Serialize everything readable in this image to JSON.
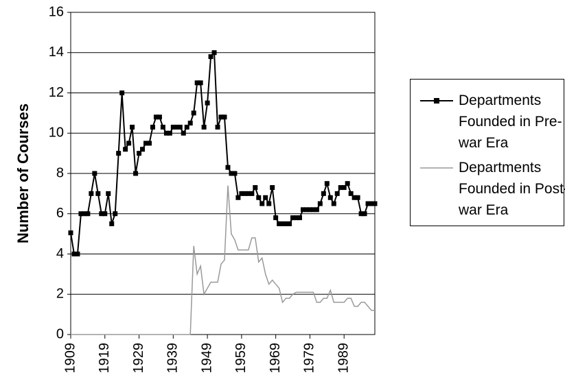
{
  "chart_data": {
    "type": "line",
    "y_label": "Number of Courses",
    "x": [
      1909,
      1910,
      1911,
      1912,
      1913,
      1914,
      1915,
      1916,
      1917,
      1918,
      1919,
      1920,
      1921,
      1922,
      1923,
      1924,
      1925,
      1926,
      1927,
      1928,
      1929,
      1930,
      1931,
      1932,
      1933,
      1934,
      1935,
      1936,
      1937,
      1938,
      1939,
      1940,
      1941,
      1942,
      1943,
      1944,
      1945,
      1946,
      1947,
      1948,
      1949,
      1950,
      1951,
      1952,
      1953,
      1954,
      1955,
      1956,
      1957,
      1958,
      1959,
      1960,
      1961,
      1962,
      1963,
      1964,
      1965,
      1966,
      1967,
      1968,
      1969,
      1970,
      1971,
      1972,
      1973,
      1974,
      1975,
      1976,
      1977,
      1978,
      1979,
      1980,
      1981,
      1982,
      1983,
      1984,
      1985,
      1986,
      1987,
      1988,
      1989,
      1990,
      1991,
      1992,
      1993,
      1994,
      1995,
      1996,
      1997,
      1998
    ],
    "xlim": [
      1909,
      1998
    ],
    "xticks": [
      1909,
      1919,
      1929,
      1939,
      1949,
      1959,
      1969,
      1979,
      1989
    ],
    "ylim": [
      0,
      16
    ],
    "yticks": [
      0,
      2,
      4,
      6,
      8,
      10,
      12,
      14,
      16
    ],
    "grid": true,
    "series": [
      {
        "name": "Departments Founded in Pre-war Era",
        "color": "#000000",
        "marker": "square",
        "values": [
          5.05,
          4,
          4,
          6,
          6,
          6,
          7,
          8,
          7,
          6,
          6,
          7,
          5.5,
          6,
          9,
          12,
          9.2,
          9.5,
          10.3,
          8,
          9,
          9.2,
          9.5,
          9.5,
          10.3,
          10.8,
          10.8,
          10.3,
          10,
          10,
          10.3,
          10.3,
          10.3,
          10,
          10.3,
          10.5,
          11,
          12.5,
          12.5,
          10.3,
          11.5,
          13.8,
          14,
          10.3,
          10.8,
          10.8,
          8.3,
          8,
          8,
          6.8,
          7,
          7,
          7,
          7,
          7.3,
          6.8,
          6.5,
          6.8,
          6.5,
          7.3,
          5.8,
          5.5,
          5.5,
          5.5,
          5.5,
          5.8,
          5.8,
          5.8,
          6.2,
          6.2,
          6.2,
          6.2,
          6.2,
          6.5,
          7,
          7.5,
          6.8,
          6.5,
          7,
          7.3,
          7.3,
          7.5,
          7,
          6.8,
          6.8,
          6,
          6,
          6.5,
          6.5,
          6.5
        ]
      },
      {
        "name": "Departments Founded in Post-war Era",
        "color": "#999999",
        "values": [
          0,
          0,
          0,
          0,
          0,
          0,
          0,
          0,
          0,
          0,
          0,
          0,
          0,
          0,
          0,
          0,
          0,
          0,
          0,
          0,
          0,
          0,
          0,
          0,
          0,
          0,
          0,
          0,
          0,
          0,
          0,
          0,
          0,
          0,
          0,
          0,
          4.4,
          3.0,
          3.4,
          2.0,
          2.3,
          2.6,
          2.6,
          2.6,
          3.5,
          3.7,
          7.4,
          5.0,
          4.7,
          4.2,
          4.2,
          4.2,
          4.2,
          4.8,
          4.8,
          3.6,
          3.8,
          3.0,
          2.5,
          2.7,
          2.5,
          2.3,
          1.6,
          1.8,
          1.8,
          2.0,
          2.1,
          2.1,
          2.1,
          2.1,
          2.1,
          2.1,
          1.6,
          1.6,
          1.8,
          1.8,
          2.2,
          1.6,
          1.6,
          1.6,
          1.6,
          1.8,
          1.8,
          1.4,
          1.4,
          1.6,
          1.6,
          1.4,
          1.2,
          1.2
        ]
      }
    ]
  }
}
